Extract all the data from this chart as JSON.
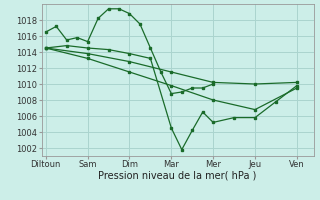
{
  "bg_color": "#cceee8",
  "grid_color": "#aad4ce",
  "line_color": "#1a6b2a",
  "xlabel": "Pression niveau de la mer( hPa )",
  "xtick_labels": [
    "Diltoun",
    "Sam",
    "Dim",
    "Mar",
    "Mer",
    "Jeu",
    "Ven"
  ],
  "xtick_positions": [
    0,
    2,
    4,
    6,
    8,
    10,
    12
  ],
  "xlim": [
    -0.2,
    12.8
  ],
  "ylim": [
    1001.0,
    1020.0
  ],
  "ytick_values": [
    1002,
    1004,
    1006,
    1008,
    1010,
    1012,
    1014,
    1016,
    1018
  ],
  "series1_x": [
    0,
    0.5,
    1.0,
    1.5,
    2.0,
    2.5,
    3.0,
    3.5,
    4.0,
    4.5,
    5.0,
    5.5,
    6.0,
    6.5,
    7.0,
    7.5,
    8.0
  ],
  "series1_y": [
    1016.5,
    1017.2,
    1015.5,
    1015.8,
    1015.3,
    1018.2,
    1019.4,
    1019.4,
    1018.8,
    1017.5,
    1014.5,
    1011.5,
    1008.8,
    1009.0,
    1009.5,
    1009.5,
    1010.0
  ],
  "series2_x": [
    0,
    1,
    2,
    3,
    4,
    5,
    6.0,
    6.5,
    7.0,
    7.5,
    8.0,
    9.0,
    10.0,
    11.0,
    12.0
  ],
  "series2_y": [
    1014.5,
    1014.8,
    1014.5,
    1014.3,
    1013.8,
    1013.2,
    1004.5,
    1001.8,
    1004.2,
    1006.5,
    1005.2,
    1005.8,
    1005.8,
    1007.8,
    1009.8
  ],
  "series3_x": [
    0,
    2,
    4,
    6,
    8,
    10,
    12
  ],
  "series3_y": [
    1014.5,
    1013.8,
    1012.8,
    1011.5,
    1010.2,
    1010.0,
    1010.2
  ],
  "series4_x": [
    0,
    2,
    4,
    6,
    8,
    10,
    12
  ],
  "series4_y": [
    1014.5,
    1013.2,
    1011.5,
    1009.8,
    1008.0,
    1006.8,
    1009.5
  ],
  "marker": "s",
  "markersize": 2.0,
  "linewidth": 0.9,
  "tick_fontsize": 6.0,
  "xlabel_fontsize": 7.0
}
